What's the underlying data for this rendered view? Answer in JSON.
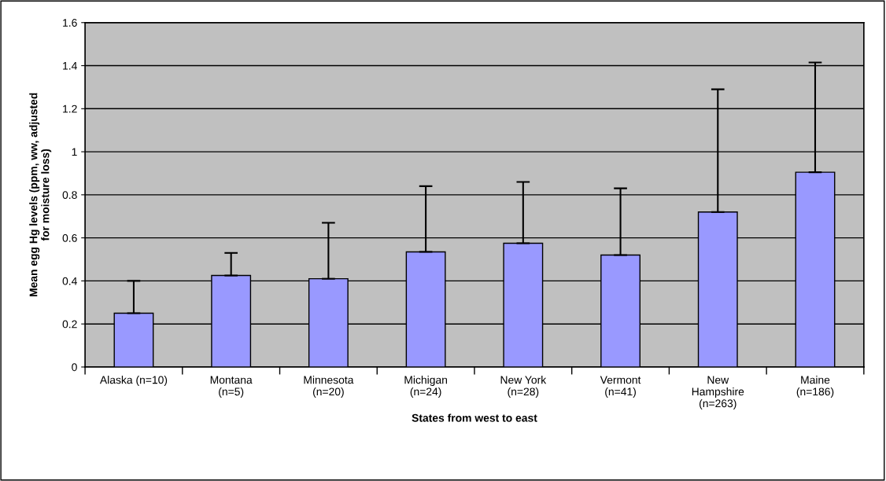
{
  "chart_data": {
    "type": "bar",
    "xlabel": "States from west to east",
    "ylabel": "Mean egg Hg levels (ppm, ww, adjusted\nfor moisture loss)",
    "categories": [
      "Alaska (n=10)",
      "Montana\n(n=5)",
      "Minnesota\n(n=20)",
      "Michigan\n(n=24)",
      "New York\n(n=28)",
      "Vermont\n(n=41)",
      "New\nHampshire\n(n=263)",
      "Maine\n(n=186)"
    ],
    "values": [
      0.25,
      0.425,
      0.41,
      0.535,
      0.575,
      0.52,
      0.72,
      0.905
    ],
    "errors": [
      [
        0.25,
        0.4
      ],
      [
        0.425,
        0.53
      ],
      [
        0.41,
        0.67
      ],
      [
        0.535,
        0.84
      ],
      [
        0.575,
        0.86
      ],
      [
        0.52,
        0.83
      ],
      [
        0.72,
        1.29
      ],
      [
        0.905,
        1.415
      ]
    ],
    "color": "#9999ff",
    "ylim": [
      0,
      1.6
    ],
    "yticks": [
      0,
      0.2,
      0.4,
      0.6,
      0.8,
      1,
      1.2,
      1.4,
      1.6
    ],
    "grid": "y"
  }
}
